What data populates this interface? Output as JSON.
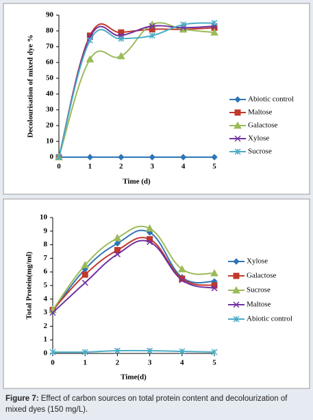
{
  "chart_data": [
    {
      "type": "line",
      "ylabel": "Decolourisation of mixed dye %",
      "xlabel": "Time (d)",
      "x": [
        0,
        1,
        2,
        3,
        4,
        5
      ],
      "xlim": [
        0,
        5
      ],
      "xticks": [
        0,
        1,
        2,
        3,
        4,
        5
      ],
      "ylim": [
        0,
        90
      ],
      "yticks": [
        0,
        10,
        20,
        30,
        40,
        50,
        60,
        70,
        80,
        90
      ],
      "grid": false,
      "legend": "right",
      "series": [
        {
          "name": "Abiotic control",
          "color": "#2e75b6",
          "marker": "diamond",
          "values": [
            0,
            0,
            0,
            0,
            0,
            0
          ]
        },
        {
          "name": "Maltose",
          "color": "#c0392b",
          "marker": "square",
          "values": [
            0,
            77,
            79,
            81,
            81,
            82
          ]
        },
        {
          "name": "Galactose",
          "color": "#9bbb59",
          "marker": "triangle",
          "values": [
            0,
            62,
            64,
            84,
            81,
            79
          ]
        },
        {
          "name": "Xylose",
          "color": "#7030a0",
          "marker": "x",
          "values": [
            0,
            76,
            77,
            83,
            82,
            83
          ]
        },
        {
          "name": "Sucrose",
          "color": "#4bacc6",
          "marker": "star",
          "values": [
            0,
            74,
            75,
            77,
            84,
            85
          ]
        }
      ]
    },
    {
      "type": "line",
      "ylabel": "Total Protein(mg/ml)",
      "xlabel": "Time(d)",
      "x": [
        0,
        1,
        2,
        3,
        4,
        5
      ],
      "xlim": [
        0,
        5
      ],
      "xticks": [
        0,
        1,
        2,
        3,
        4,
        5
      ],
      "ylim": [
        0,
        10
      ],
      "yticks": [
        0,
        1,
        2,
        3,
        4,
        5,
        6,
        7,
        8,
        9,
        10
      ],
      "grid": false,
      "legend": "right",
      "series": [
        {
          "name": "Xylose",
          "color": "#2e75b6",
          "marker": "diamond",
          "values": [
            3.1,
            6.2,
            8.1,
            8.9,
            5.6,
            5.3
          ]
        },
        {
          "name": "Galactose",
          "color": "#c0392b",
          "marker": "square",
          "values": [
            3.2,
            5.8,
            7.6,
            8.4,
            5.5,
            5.0
          ]
        },
        {
          "name": "Sucrose",
          "color": "#9bbb59",
          "marker": "triangle",
          "values": [
            3.2,
            6.5,
            8.5,
            9.2,
            6.2,
            5.9
          ]
        },
        {
          "name": "Maltose",
          "color": "#7030a0",
          "marker": "x",
          "values": [
            3.0,
            5.2,
            7.3,
            8.2,
            5.4,
            4.8
          ]
        },
        {
          "name": "Abiotic control",
          "color": "#4bacc6",
          "marker": "star",
          "values": [
            0.1,
            0.1,
            0.2,
            0.2,
            0.15,
            0.1
          ]
        }
      ]
    }
  ],
  "caption": {
    "label": "Figure 7:",
    "text": "Effect of carbon sources on total protein content and decolourization of mixed dyes (150 mg/L)."
  }
}
